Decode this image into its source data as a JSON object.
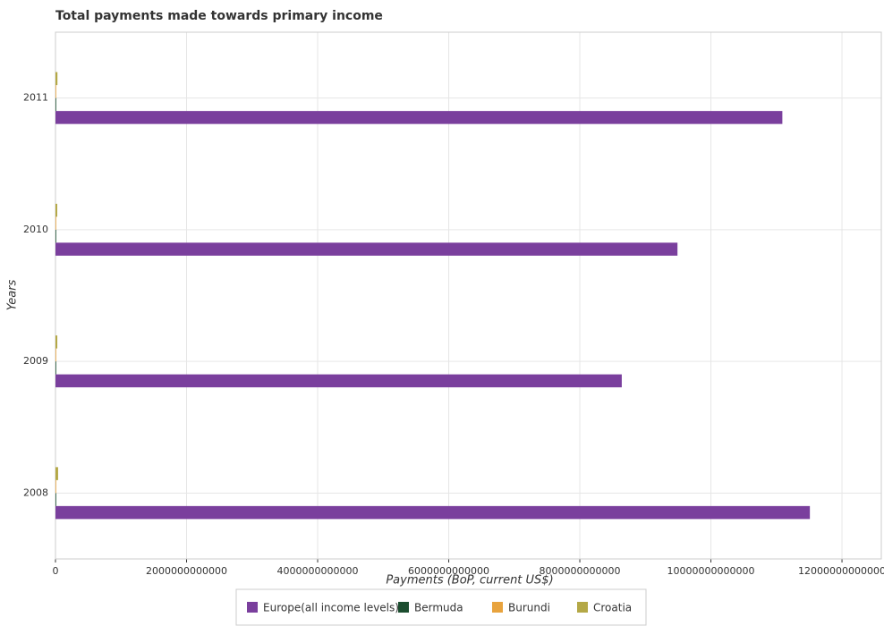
{
  "chart_data": {
    "type": "barh",
    "title": "Total payments made towards primary income",
    "xlabel": "Payments (BoP, current US$)",
    "ylabel": "Years",
    "categories": [
      "2008",
      "2009",
      "2010",
      "2011"
    ],
    "series": [
      {
        "name": "Europe(all income levels)",
        "color": "#7a3f9d",
        "values": [
          11510000000000,
          8640000000000,
          9490000000000,
          11090000000000
        ]
      },
      {
        "name": "Bermuda",
        "color": "#1b4d2f",
        "values": [
          10000000000,
          9000000000,
          9000000000,
          8000000000
        ]
      },
      {
        "name": "Burundi",
        "color": "#e8a33d",
        "values": [
          1000000000,
          1000000000,
          1000000000,
          1000000000
        ]
      },
      {
        "name": "Croatia",
        "color": "#b4a846",
        "values": [
          40000000000,
          28000000000,
          27000000000,
          30000000000
        ]
      }
    ],
    "xlim": [
      0,
      12600000000000
    ],
    "xticks": [
      0,
      2000000000000,
      4000000000000,
      6000000000000,
      8000000000000,
      10000000000000,
      12000000000000
    ],
    "grid": true,
    "legend": "bottom"
  }
}
